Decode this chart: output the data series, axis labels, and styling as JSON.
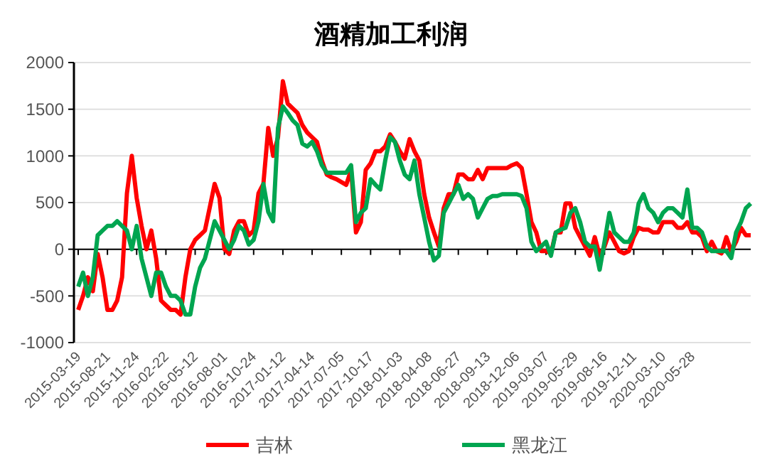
{
  "chart_data": {
    "type": "line",
    "title": "酒精加工利润",
    "categories": [
      "2015-03-19",
      null,
      null,
      null,
      null,
      null,
      "2015-08-21",
      null,
      null,
      null,
      null,
      null,
      "2015-11-24",
      null,
      null,
      null,
      null,
      null,
      "2016-02-22",
      null,
      null,
      null,
      null,
      null,
      "2016-05-12",
      null,
      null,
      null,
      null,
      null,
      "2016-08-01",
      null,
      null,
      null,
      null,
      null,
      "2016-10-24",
      null,
      null,
      null,
      null,
      null,
      "2017-01-12",
      null,
      null,
      null,
      null,
      null,
      "2017-04-14",
      null,
      null,
      null,
      null,
      null,
      "2017-07-05",
      null,
      null,
      null,
      null,
      null,
      "2017-10-17",
      null,
      null,
      null,
      null,
      null,
      "2018-01-03",
      null,
      null,
      null,
      null,
      null,
      "2018-04-08",
      null,
      null,
      null,
      null,
      null,
      "2018-06-27",
      null,
      null,
      null,
      null,
      null,
      "2018-09-13",
      null,
      null,
      null,
      null,
      null,
      "2018-12-06",
      null,
      null,
      null,
      null,
      null,
      "2019-03-07",
      null,
      null,
      null,
      null,
      null,
      "2019-05-29",
      null,
      null,
      null,
      null,
      null,
      "2019-08-16",
      null,
      null,
      null,
      null,
      null,
      "2019-12-11",
      null,
      null,
      null,
      null,
      null,
      "2020-03-10",
      null,
      null,
      null,
      null,
      null,
      "2020-05-28",
      null,
      null,
      null,
      null,
      null,
      null,
      null,
      null,
      null,
      null,
      null,
      null
    ],
    "series": [
      {
        "name": "吉林",
        "color": "#ff0000",
        "values": [
          -650,
          -500,
          -300,
          -450,
          -50,
          -300,
          -650,
          -650,
          -550,
          -300,
          600,
          1000,
          550,
          250,
          0,
          200,
          -100,
          -550,
          -600,
          -650,
          -650,
          -700,
          -300,
          0,
          100,
          150,
          200,
          450,
          700,
          550,
          0,
          -50,
          200,
          300,
          300,
          150,
          200,
          600,
          700,
          1300,
          1000,
          1200,
          1800,
          1560,
          1510,
          1460,
          1330,
          1250,
          1200,
          1150,
          950,
          800,
          770,
          750,
          720,
          690,
          850,
          180,
          290,
          850,
          920,
          1050,
          1050,
          1100,
          1230,
          1150,
          1050,
          970,
          1180,
          1050,
          950,
          590,
          340,
          180,
          30,
          440,
          590,
          590,
          800,
          800,
          750,
          750,
          850,
          750,
          870,
          870,
          870,
          870,
          870,
          900,
          920,
          870,
          590,
          290,
          180,
          -20,
          -20,
          -45,
          180,
          180,
          490,
          490,
          230,
          130,
          30,
          -70,
          130,
          -70,
          30,
          180,
          80,
          -20,
          -45,
          -20,
          130,
          230,
          210,
          210,
          180,
          180,
          290,
          290,
          290,
          230,
          230,
          290,
          180,
          180,
          130,
          -20,
          80,
          -20,
          -45,
          130,
          -20,
          80,
          230,
          150,
          150
        ]
      },
      {
        "name": "黑龙江",
        "color": "#00a550",
        "values": [
          -400,
          -250,
          -500,
          -300,
          150,
          200,
          250,
          250,
          300,
          250,
          200,
          0,
          250,
          -100,
          -300,
          -500,
          -250,
          -250,
          -400,
          -500,
          -500,
          -550,
          -700,
          -700,
          -400,
          -200,
          -100,
          100,
          300,
          200,
          100,
          0,
          100,
          250,
          200,
          50,
          100,
          300,
          700,
          400,
          300,
          1300,
          1530,
          1460,
          1380,
          1330,
          1130,
          1100,
          1150,
          1050,
          900,
          820,
          820,
          820,
          820,
          820,
          900,
          290,
          390,
          440,
          750,
          690,
          640,
          950,
          1200,
          1150,
          950,
          800,
          750,
          950,
          590,
          340,
          80,
          -120,
          -70,
          390,
          490,
          590,
          690,
          540,
          590,
          540,
          340,
          440,
          540,
          570,
          570,
          590,
          590,
          590,
          590,
          570,
          440,
          80,
          -20,
          30,
          80,
          -70,
          180,
          210,
          230,
          390,
          440,
          290,
          80,
          30,
          30,
          -220,
          80,
          390,
          180,
          130,
          80,
          80,
          180,
          490,
          590,
          440,
          390,
          290,
          390,
          440,
          440,
          390,
          340,
          640,
          230,
          230,
          180,
          30,
          -20,
          -20,
          -20,
          -20,
          -95,
          180,
          290,
          440,
          490
        ]
      }
    ],
    "ylim": [
      -1000,
      2000
    ],
    "yticks": [
      -1000,
      -500,
      0,
      500,
      1000,
      1500,
      2000
    ],
    "grid": "y",
    "legend": "bottom",
    "marker": "none",
    "line_style": "solid"
  }
}
